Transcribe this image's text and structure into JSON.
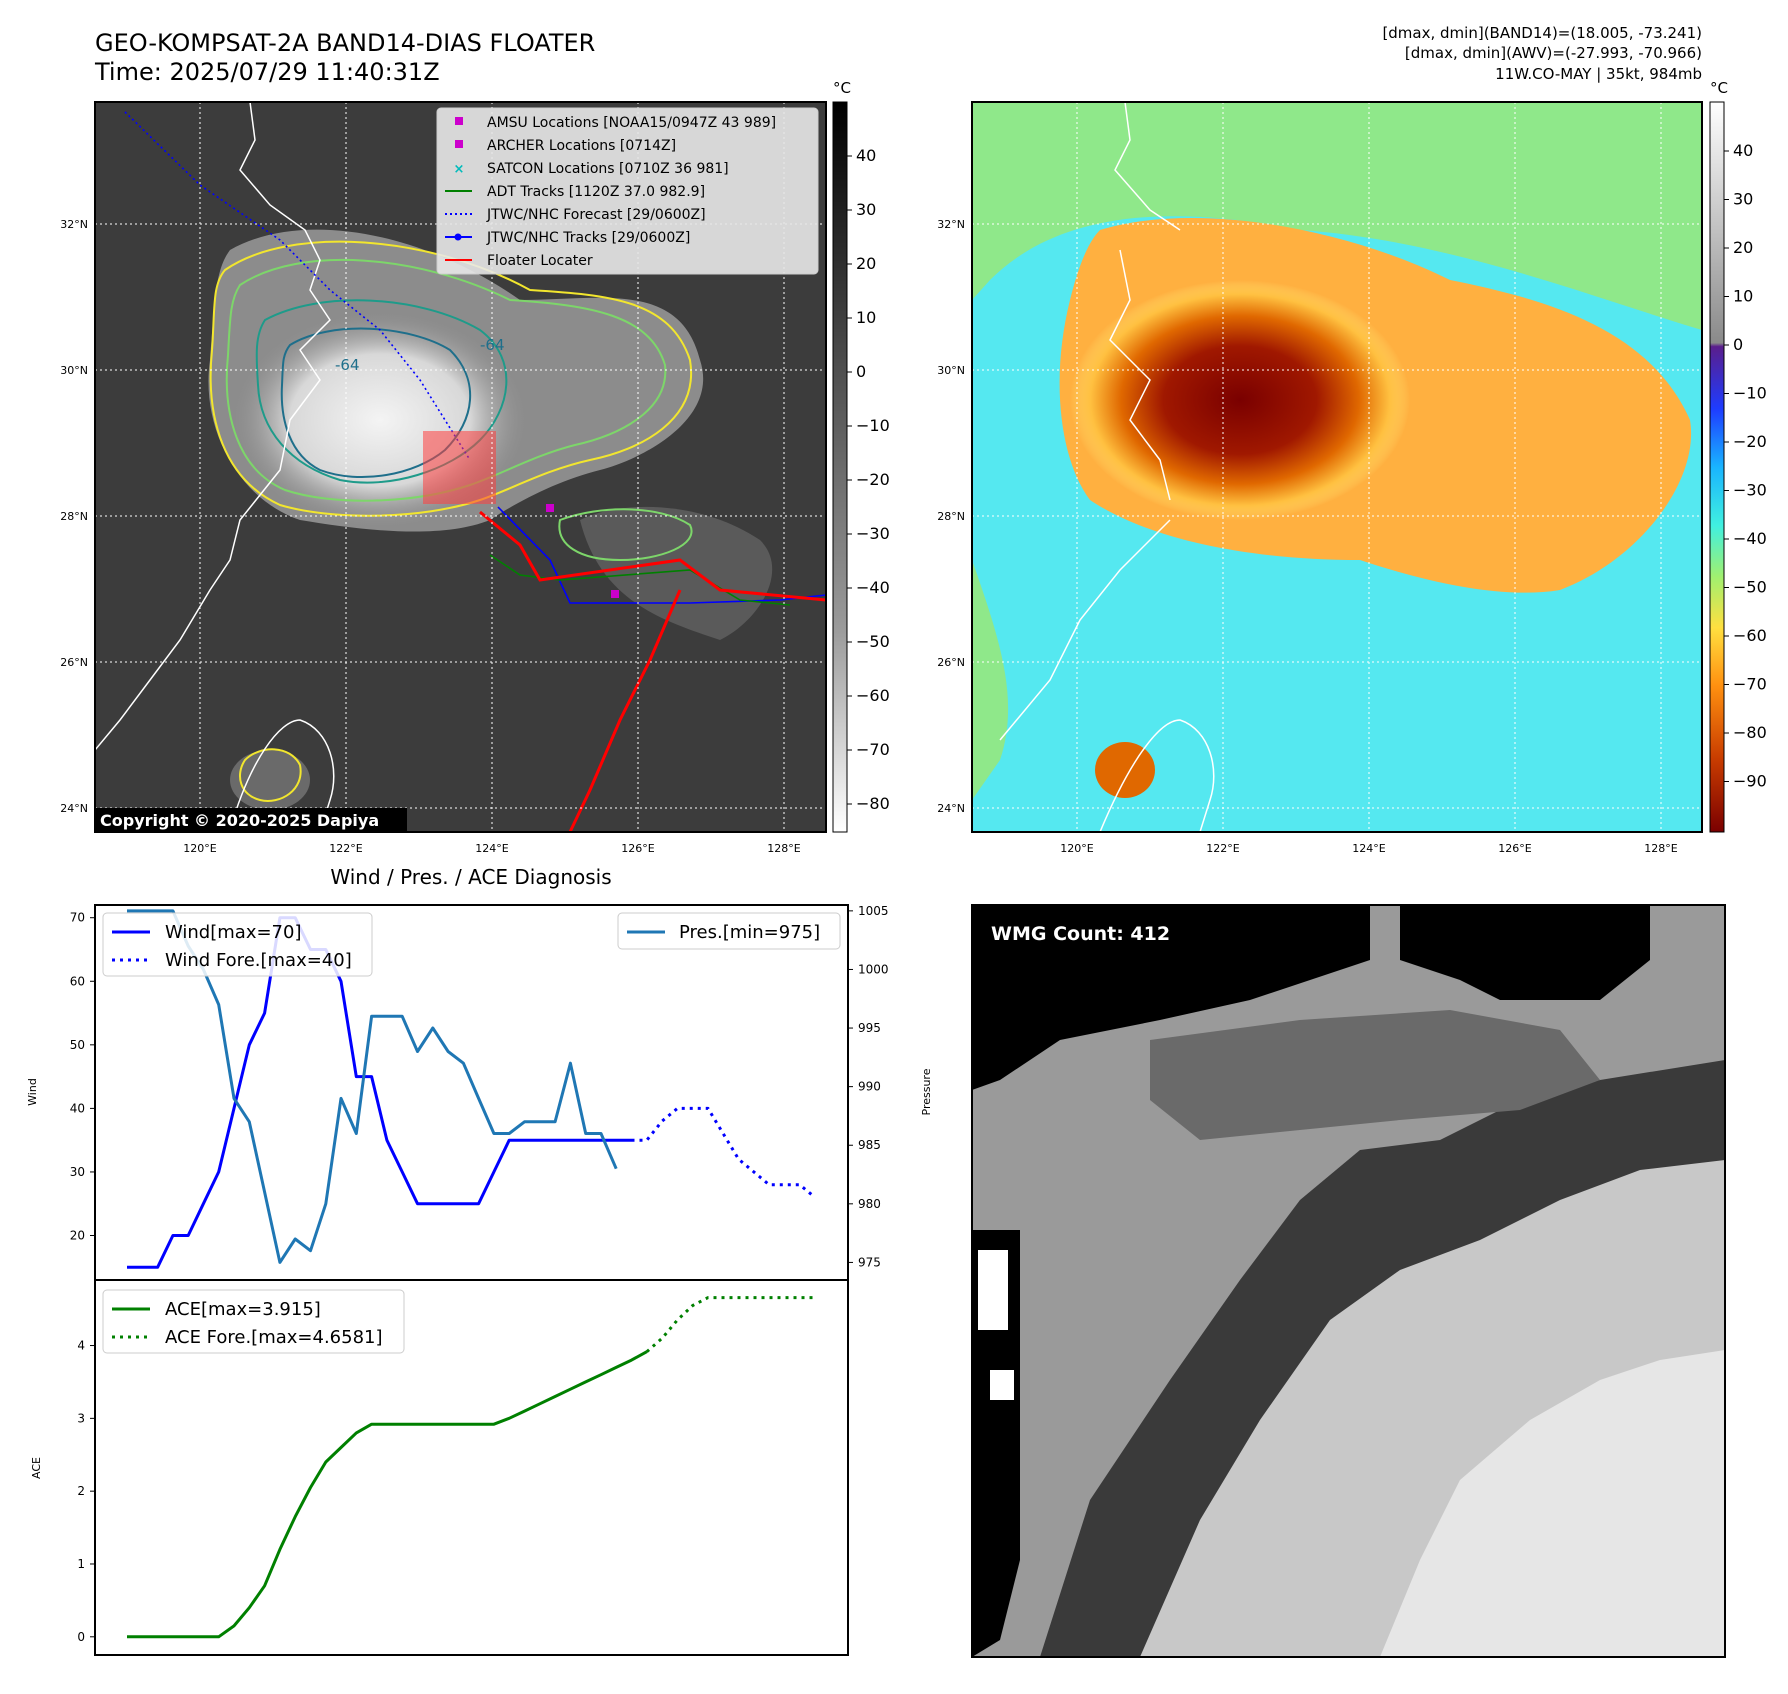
{
  "header": {
    "title_line1": "GEO-KOMPSAT-2A BAND14-DIAS FLOATER",
    "title_line2": "Time: 2025/07/29 11:40:31Z",
    "info_line1": "[dmax, dmin](BAND14)=(18.005, -73.241)",
    "info_line2": "[dmax, dmin](AWV)=(-27.993, -70.966)",
    "info_line3": "11W.CO-MAY | 35kt, 984mb"
  },
  "maps": {
    "lat_labels": [
      "32°N",
      "30°N",
      "28°N",
      "26°N",
      "24°N"
    ],
    "lon_labels": [
      "120°E",
      "122°E",
      "124°E",
      "126°E",
      "128°E"
    ],
    "contour_labels": [
      "-64",
      "-64"
    ],
    "copyright": "Copyright © 2020-2025 Dapiya",
    "colorbar_unit": "°C",
    "left_colorbar_ticks": [
      "40",
      "30",
      "20",
      "10",
      "0",
      "−10",
      "−20",
      "−30",
      "−40",
      "−50",
      "−60",
      "−70",
      "−80"
    ],
    "right_colorbar_ticks": [
      "40",
      "30",
      "20",
      "10",
      "0",
      "−10",
      "−20",
      "−30",
      "−40",
      "−50",
      "−60",
      "−70",
      "−80",
      "−90"
    ],
    "colors": {
      "land_outline": "#ffffff",
      "contour_yellow": "#f2e62e",
      "contour_lightgreen": "#7dd66a",
      "contour_teal": "#1e9b8a",
      "contour_darkteal": "#1f6f8b",
      "floater_red": "#ff0000",
      "jtwc_blue": "#0000ff",
      "adt_green": "#008000",
      "marker_magenta": "#cc00cc",
      "satcon_cyan": "#00bbbb"
    }
  },
  "legend": {
    "items": [
      {
        "label": "AMSU Locations [NOAA15/0947Z 43 989]",
        "marker": "square-magenta"
      },
      {
        "label": "ARCHER Locations [0714Z]",
        "marker": "square-magenta"
      },
      {
        "label": "SATCON Locations [0710Z 36 981]",
        "marker": "x-cyan"
      },
      {
        "label": "ADT Tracks [1120Z 37.0 982.9]",
        "marker": "line-green"
      },
      {
        "label": "JTWC/NHC Forecast [29/0600Z]",
        "marker": "dotted-blue"
      },
      {
        "label": "JTWC/NHC Tracks [29/0600Z]",
        "marker": "line-dot-blue"
      },
      {
        "label": "Floater Locater",
        "marker": "line-red"
      }
    ]
  },
  "diag": {
    "title": "Wind / Pres. / ACE Diagnosis",
    "wind_ylabel": "Wind",
    "pres_ylabel": "Pressure",
    "ace_ylabel": "ACE",
    "legend_wind": "Wind[max=70]",
    "legend_wind_fore": "Wind Fore.[max=40]",
    "legend_pres": "Pres.[min=975]",
    "legend_ace": "ACE[max=3.915]",
    "legend_ace_fore": "ACE Fore.[max=4.6581]",
    "wind_ticks": [
      "70",
      "60",
      "50",
      "40",
      "30",
      "20"
    ],
    "pres_ticks": [
      "1005",
      "1000",
      "995",
      "990",
      "985",
      "980",
      "975"
    ],
    "ace_ticks": [
      "4",
      "3",
      "2",
      "1",
      "0"
    ]
  },
  "wmg": {
    "label": "WMG Count: 412"
  },
  "chart_data": [
    {
      "type": "line",
      "title": "Wind / Pres. / ACE Diagnosis",
      "ylabel": "Wind",
      "y2label": "Pressure",
      "ylim": [
        13,
        72
      ],
      "y2lim": [
        973.5,
        1005.5
      ],
      "x": [
        0,
        1,
        2,
        3,
        4,
        5,
        6,
        7,
        8,
        9,
        10,
        11,
        12,
        13,
        14,
        15,
        16,
        17,
        18,
        19,
        20,
        21,
        22,
        23,
        24,
        25,
        26,
        27,
        28,
        29,
        30,
        31,
        32,
        33,
        34,
        35,
        36,
        37,
        38,
        39,
        40,
        41,
        42,
        43,
        44,
        45
      ],
      "series": [
        {
          "name": "Wind[max=70]",
          "color": "#0000ff",
          "style": "solid",
          "values": [
            15,
            15,
            15,
            20,
            20,
            25,
            30,
            40,
            50,
            55,
            70,
            70,
            65,
            65,
            60,
            45,
            45,
            35,
            30,
            25,
            25,
            25,
            25,
            25,
            30,
            35,
            35,
            35,
            35,
            35,
            35,
            35,
            35,
            35,
            null,
            null,
            null,
            null,
            null,
            null,
            null,
            null,
            null,
            null,
            null,
            null
          ]
        },
        {
          "name": "Wind Fore.[max=40]",
          "color": "#0000ff",
          "style": "dotted",
          "values": [
            null,
            null,
            null,
            null,
            null,
            null,
            null,
            null,
            null,
            null,
            null,
            null,
            null,
            null,
            null,
            null,
            null,
            null,
            null,
            null,
            null,
            null,
            null,
            null,
            null,
            null,
            null,
            null,
            null,
            null,
            null,
            null,
            null,
            35,
            35,
            38,
            40,
            40,
            40,
            36,
            32,
            30,
            28,
            28,
            28,
            26
          ]
        },
        {
          "name": "Pres.[min=975]",
          "color": "#1f77b4",
          "style": "solid",
          "axis": "right",
          "values": [
            1005,
            1005,
            1005,
            1005,
            1002,
            1000,
            997,
            989,
            987,
            981,
            975,
            977,
            976,
            980,
            989,
            986,
            996,
            996,
            996,
            993,
            995,
            993,
            992,
            989,
            986,
            986,
            987,
            987,
            987,
            992,
            986,
            986,
            983,
            null,
            null,
            null,
            null,
            null,
            null,
            null,
            null,
            null,
            null,
            null,
            null,
            null
          ]
        }
      ]
    },
    {
      "type": "line",
      "ylabel": "ACE",
      "ylim": [
        -0.25,
        4.9
      ],
      "x": [
        0,
        1,
        2,
        3,
        4,
        5,
        6,
        7,
        8,
        9,
        10,
        11,
        12,
        13,
        14,
        15,
        16,
        17,
        18,
        19,
        20,
        21,
        22,
        23,
        24,
        25,
        26,
        27,
        28,
        29,
        30,
        31,
        32,
        33,
        34,
        35,
        36,
        37,
        38,
        39,
        40,
        41,
        42,
        43,
        44,
        45
      ],
      "series": [
        {
          "name": "ACE[max=3.915]",
          "color": "#008000",
          "style": "solid",
          "values": [
            0,
            0,
            0,
            0,
            0,
            0,
            0,
            0.15,
            0.4,
            0.7,
            1.2,
            1.65,
            2.05,
            2.4,
            2.6,
            2.8,
            2.92,
            2.92,
            2.92,
            2.92,
            2.92,
            2.92,
            2.92,
            2.92,
            2.92,
            3.0,
            3.1,
            3.2,
            3.3,
            3.4,
            3.5,
            3.6,
            3.7,
            3.8,
            3.915,
            null,
            null,
            null,
            null,
            null,
            null,
            null,
            null,
            null,
            null,
            null
          ]
        },
        {
          "name": "ACE Fore.[max=4.6581]",
          "color": "#008000",
          "style": "dotted",
          "values": [
            null,
            null,
            null,
            null,
            null,
            null,
            null,
            null,
            null,
            null,
            null,
            null,
            null,
            null,
            null,
            null,
            null,
            null,
            null,
            null,
            null,
            null,
            null,
            null,
            null,
            null,
            null,
            null,
            null,
            null,
            null,
            null,
            null,
            null,
            3.915,
            4.1,
            4.35,
            4.55,
            4.6581,
            4.6581,
            4.6581,
            4.6581,
            4.6581,
            4.6581,
            4.6581,
            4.6581
          ]
        }
      ]
    }
  ]
}
